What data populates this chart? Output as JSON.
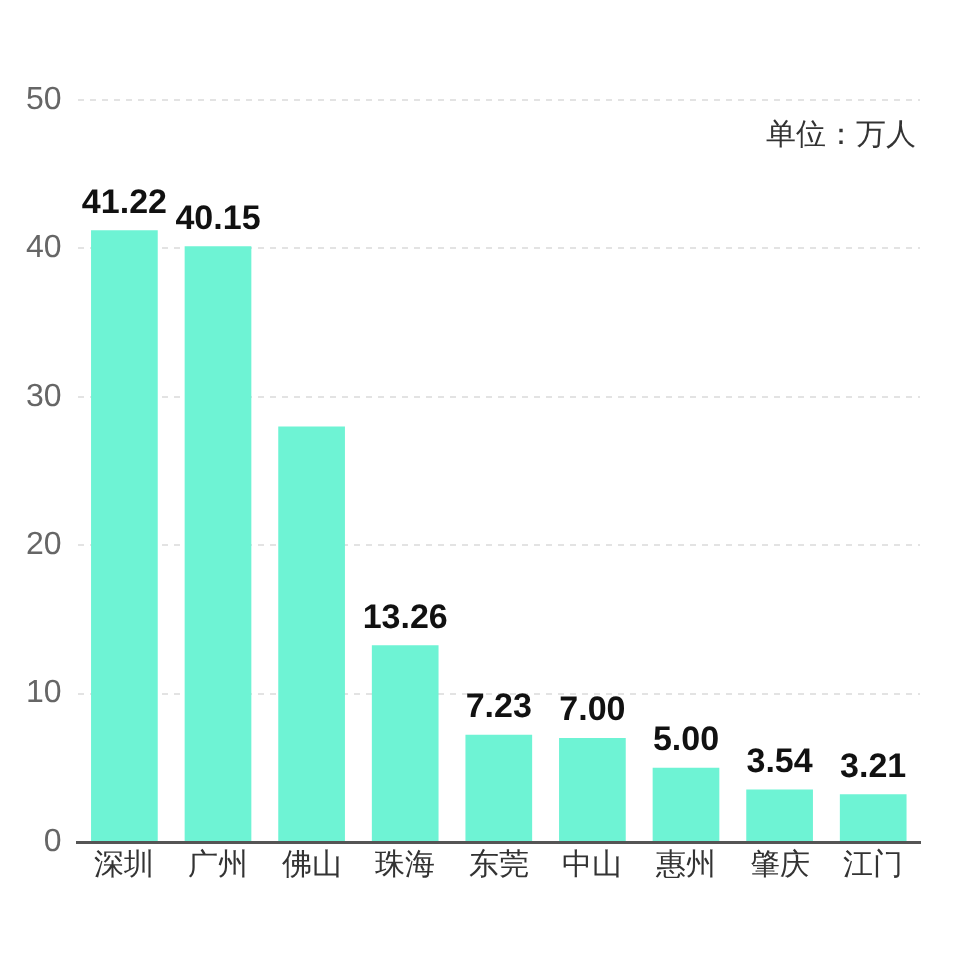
{
  "chart_data": {
    "type": "bar",
    "categories": [
      "深圳",
      "广州",
      "佛山",
      "珠海",
      "东莞",
      "中山",
      "惠州",
      "肇庆",
      "江门"
    ],
    "values": [
      41.22,
      40.15,
      28,
      13.26,
      7.23,
      7.0,
      5.0,
      3.54,
      3.21
    ],
    "value_labels": [
      "41.22",
      "40.15",
      null,
      "13.26",
      "7.23",
      "7.00",
      "5.00",
      "3.54",
      "3.21"
    ],
    "color": "#6ef3d4",
    "ylim": [
      0,
      50
    ],
    "yticks": [
      0,
      10,
      20,
      30,
      40,
      50
    ],
    "grid": "y",
    "legend": false,
    "annotations": [
      "单位：万人"
    ]
  }
}
